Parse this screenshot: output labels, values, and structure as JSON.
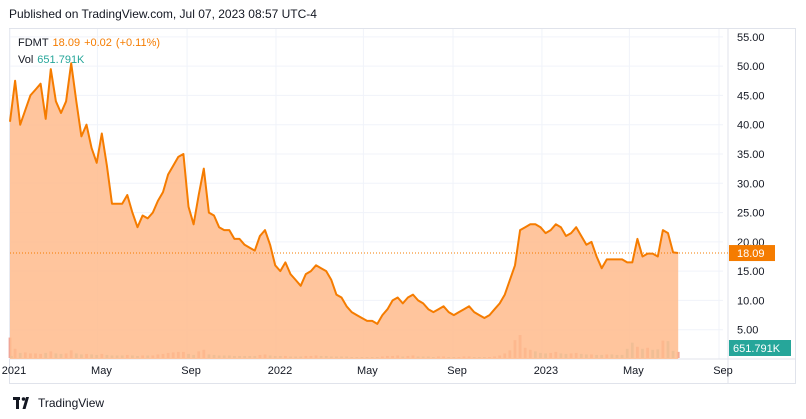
{
  "header": {
    "published": "Published on TradingView.com, Jul 07, 2023 08:57 UTC-4"
  },
  "legend": {
    "symbol": "FDMT",
    "price": "18.09",
    "change": "+0.02",
    "change_pct": "(+0.11%)",
    "vol_label": "Vol",
    "vol_value": "651.791K"
  },
  "footer": {
    "brand": "TradingView"
  },
  "colors": {
    "line": "#f57c00",
    "area": "#ffbb8c",
    "volume_up": "#efa698",
    "volume_down": "#9bd0c6",
    "grid": "#f0f3fa",
    "vol_badge": "#26a69a"
  },
  "chart_data": {
    "type": "area",
    "title": "",
    "x_tick_labels": [
      "2021",
      "May",
      "Sep",
      "2022",
      "May",
      "Sep",
      "2023",
      "May",
      "Sep"
    ],
    "y_tick_labels": [
      "5.00",
      "10.00",
      "15.00",
      "20.00",
      "25.00",
      "30.00",
      "35.00",
      "40.00",
      "45.00",
      "50.00",
      "55.00"
    ],
    "ylim": [
      0,
      56
    ],
    "last_price_label": "18.09",
    "volume_label": "651.791K",
    "series": [
      {
        "name": "FDMT",
        "x": [
          "2021-01-01",
          "2021-01-08",
          "2021-01-15",
          "2021-01-22",
          "2021-01-29",
          "2021-02-05",
          "2021-02-12",
          "2021-02-19",
          "2021-02-26",
          "2021-03-05",
          "2021-03-12",
          "2021-03-19",
          "2021-03-26",
          "2021-04-02",
          "2021-04-09",
          "2021-04-16",
          "2021-04-23",
          "2021-04-30",
          "2021-05-07",
          "2021-05-14",
          "2021-05-21",
          "2021-05-28",
          "2021-06-04",
          "2021-06-11",
          "2021-06-18",
          "2021-06-25",
          "2021-07-02",
          "2021-07-09",
          "2021-07-16",
          "2021-07-23",
          "2021-07-30",
          "2021-08-06",
          "2021-08-13",
          "2021-08-20",
          "2021-08-27",
          "2021-09-03",
          "2021-09-10",
          "2021-09-17",
          "2021-09-24",
          "2021-10-01",
          "2021-10-08",
          "2021-10-15",
          "2021-10-22",
          "2021-10-29",
          "2021-11-05",
          "2021-11-12",
          "2021-11-19",
          "2021-11-26",
          "2021-12-03",
          "2021-12-10",
          "2021-12-17",
          "2021-12-24",
          "2021-12-31",
          "2022-01-07",
          "2022-01-14",
          "2022-01-21",
          "2022-01-28",
          "2022-02-04",
          "2022-02-11",
          "2022-02-18",
          "2022-02-25",
          "2022-03-04",
          "2022-03-11",
          "2022-03-18",
          "2022-03-25",
          "2022-04-01",
          "2022-04-08",
          "2022-04-15",
          "2022-04-22",
          "2022-04-29",
          "2022-05-06",
          "2022-05-13",
          "2022-05-20",
          "2022-05-27",
          "2022-06-03",
          "2022-06-10",
          "2022-06-17",
          "2022-06-24",
          "2022-07-01",
          "2022-07-08",
          "2022-07-15",
          "2022-07-22",
          "2022-07-29",
          "2022-08-05",
          "2022-08-12",
          "2022-08-19",
          "2022-08-26",
          "2022-09-02",
          "2022-09-09",
          "2022-09-16",
          "2022-09-23",
          "2022-09-30",
          "2022-10-07",
          "2022-10-14",
          "2022-10-21",
          "2022-10-28",
          "2022-11-04",
          "2022-11-11",
          "2022-11-18",
          "2022-11-25",
          "2022-12-02",
          "2022-12-09",
          "2022-12-16",
          "2022-12-23",
          "2022-12-30",
          "2023-01-06",
          "2023-01-13",
          "2023-01-20",
          "2023-01-27",
          "2023-02-03",
          "2023-02-10",
          "2023-02-17",
          "2023-02-24",
          "2023-03-03",
          "2023-03-10",
          "2023-03-17",
          "2023-03-24",
          "2023-03-31",
          "2023-04-07",
          "2023-04-14",
          "2023-04-21",
          "2023-04-28",
          "2023-05-05",
          "2023-05-12",
          "2023-05-19",
          "2023-05-26",
          "2023-06-02",
          "2023-06-09",
          "2023-06-16",
          "2023-06-23",
          "2023-06-30",
          "2023-07-07"
        ],
        "values": [
          40.5,
          47.5,
          40.0,
          42.5,
          45.0,
          46.0,
          47.0,
          41.0,
          49.5,
          44.0,
          42.0,
          44.0,
          50.5,
          44.0,
          38.0,
          40.0,
          36.0,
          33.5,
          38.5,
          33.0,
          26.5,
          26.5,
          26.5,
          28.0,
          25.0,
          22.5,
          24.5,
          24.0,
          25.0,
          27.0,
          28.5,
          31.5,
          33.0,
          34.5,
          35.0,
          26.0,
          23.0,
          28.0,
          32.5,
          25.0,
          24.5,
          22.5,
          22.0,
          22.0,
          20.5,
          20.5,
          19.5,
          19.0,
          18.5,
          21.0,
          22.0,
          19.5,
          16.0,
          15.0,
          16.5,
          14.5,
          13.5,
          12.5,
          14.5,
          15.0,
          16.0,
          15.5,
          15.0,
          13.5,
          11.0,
          10.5,
          9.0,
          8.0,
          7.5,
          7.0,
          6.5,
          6.5,
          6.0,
          7.5,
          8.5,
          10.0,
          10.5,
          9.5,
          10.5,
          11.0,
          10.0,
          9.5,
          8.5,
          8.0,
          8.5,
          9.0,
          8.0,
          7.5,
          8.0,
          8.5,
          9.0,
          8.0,
          7.5,
          7.0,
          7.5,
          8.5,
          9.5,
          11.0,
          13.5,
          16.0,
          22.0,
          22.5,
          23.0,
          23.0,
          22.5,
          21.5,
          22.0,
          23.0,
          22.5,
          21.0,
          21.5,
          22.5,
          21.0,
          19.5,
          20.0,
          17.5,
          15.5,
          17.0,
          17.0,
          17.0,
          17.0,
          16.5,
          16.5,
          20.5,
          17.5,
          18.0,
          18.0,
          17.5,
          22.0,
          21.5,
          18.2,
          18.09
        ]
      }
    ],
    "volume": {
      "max_k": 9000,
      "values_k": [
        4000,
        1800,
        1000,
        1100,
        900,
        900,
        800,
        1000,
        1300,
        900,
        800,
        900,
        1500,
        900,
        700,
        800,
        700,
        600,
        800,
        600,
        500,
        500,
        500,
        600,
        500,
        400,
        500,
        500,
        500,
        700,
        800,
        1000,
        1100,
        1200,
        1200,
        800,
        600,
        1300,
        1600,
        700,
        600,
        500,
        500,
        500,
        400,
        400,
        400,
        400,
        400,
        600,
        700,
        500,
        400,
        400,
        400,
        300,
        300,
        300,
        400,
        400,
        500,
        400,
        400,
        300,
        300,
        300,
        300,
        200,
        200,
        200,
        200,
        200,
        200,
        300,
        400,
        400,
        500,
        300,
        400,
        500,
        300,
        300,
        300,
        200,
        300,
        300,
        200,
        200,
        200,
        300,
        300,
        200,
        200,
        200,
        200,
        300,
        500,
        900,
        1500,
        3500,
        4500,
        2000,
        1600,
        1300,
        1000,
        900,
        1000,
        1200,
        900,
        800,
        900,
        1000,
        800,
        700,
        700,
        600,
        600,
        700,
        700,
        600,
        600,
        1800,
        3000,
        2200,
        1800,
        2000,
        1600,
        1700,
        3400,
        3300,
        1400,
        1200,
        400
      ],
      "up": [
        1,
        1,
        0,
        1,
        1,
        1,
        1,
        0,
        1,
        0,
        0,
        1,
        1,
        0,
        0,
        1,
        0,
        0,
        1,
        0,
        0,
        0,
        0,
        1,
        0,
        0,
        1,
        0,
        1,
        1,
        1,
        1,
        1,
        1,
        1,
        0,
        0,
        1,
        1,
        0,
        0,
        0,
        0,
        0,
        0,
        0,
        0,
        0,
        0,
        1,
        1,
        0,
        0,
        0,
        1,
        0,
        0,
        0,
        1,
        1,
        1,
        0,
        0,
        0,
        0,
        0,
        0,
        0,
        0,
        0,
        0,
        0,
        0,
        1,
        1,
        1,
        1,
        0,
        1,
        1,
        0,
        0,
        0,
        0,
        1,
        1,
        0,
        0,
        1,
        1,
        1,
        0,
        0,
        0,
        1,
        1,
        1,
        1,
        1,
        1,
        1,
        1,
        1,
        0,
        0,
        0,
        1,
        1,
        0,
        0,
        1,
        1,
        0,
        0,
        1,
        0,
        0,
        1,
        0,
        0,
        0,
        0,
        0,
        1,
        0,
        1,
        0,
        0,
        1,
        0,
        0,
        1
      ]
    }
  }
}
